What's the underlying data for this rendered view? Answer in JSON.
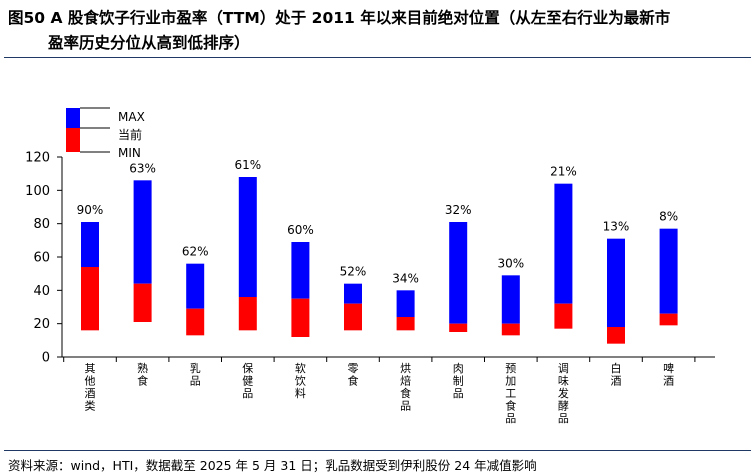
{
  "title_line1": "图50 A 股食饮子行业市盈率（TTM）处于 2011 年以来目前绝对位置（从左至右行业为最新市",
  "title_line2": "盈率历史分位从高到低排序）",
  "source": "资料来源：wind，HTI，数据截至 2025 年 5 月 31 日；乳品数据受到伊利股份 24 年减值影响",
  "colors": {
    "upper": "#0000ff",
    "lower": "#ff0000",
    "axis": "#000000",
    "rule": "#1f3864"
  },
  "chart_data": {
    "type": "bar",
    "subtype": "floating-range",
    "legend": [
      "MAX",
      "当前",
      "MIN"
    ],
    "legend_position": "top-left",
    "ylim": [
      0,
      120
    ],
    "yticks": [
      0,
      20,
      40,
      60,
      80,
      100,
      120
    ],
    "grid": false,
    "categories": [
      "其他酒类",
      "熟食",
      "乳品",
      "保健品",
      "软饮料",
      "零食",
      "烘焙食品",
      "肉制品",
      "预加工食品",
      "调味发酵品",
      "白酒",
      "啤酒"
    ],
    "max": [
      81,
      106,
      56,
      108,
      69,
      44,
      40,
      81,
      49,
      104,
      71,
      77
    ],
    "current": [
      54,
      44,
      29,
      36,
      35,
      32,
      24,
      20,
      20,
      32,
      18,
      26
    ],
    "min": [
      16,
      21,
      13,
      16,
      12,
      16,
      16,
      15,
      13,
      17,
      8,
      19
    ],
    "percentile_labels": [
      "90%",
      "63%",
      "62%",
      "61%",
      "60%",
      "52%",
      "34%",
      "32%",
      "30%",
      "21%",
      "13%",
      "8%"
    ]
  }
}
